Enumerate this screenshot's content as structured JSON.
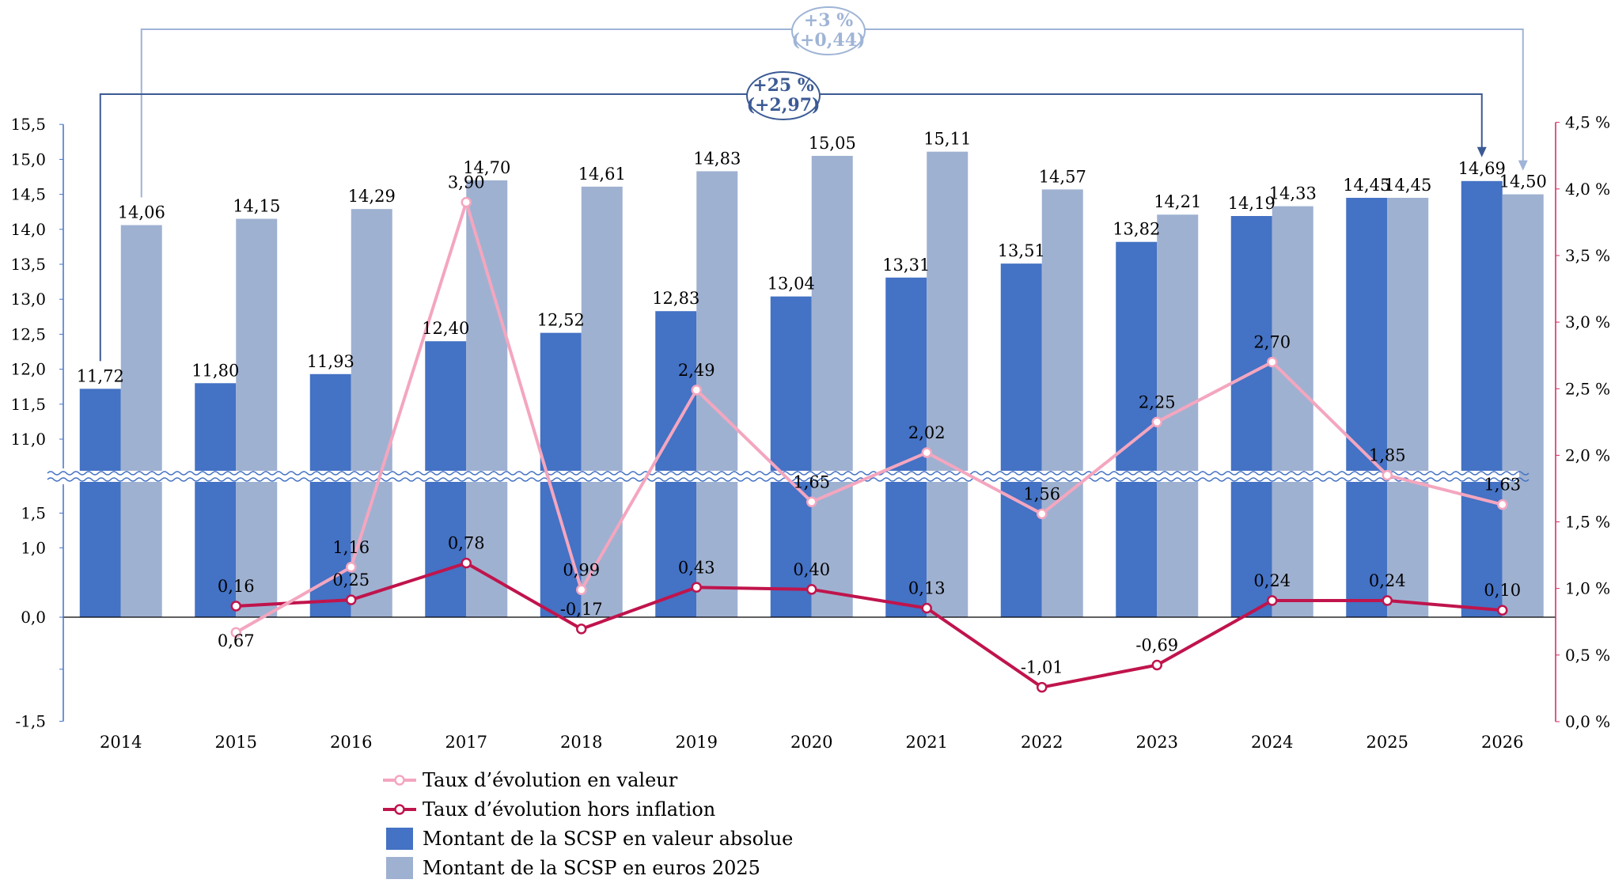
{
  "chart_data": {
    "type": "bar",
    "categories": [
      "2014",
      "2015",
      "2016",
      "2017",
      "2018",
      "2019",
      "2020",
      "2021",
      "2022",
      "2023",
      "2024",
      "2025",
      "2026"
    ],
    "series": [
      {
        "name": "Montant de la SCSP en valeur absolue",
        "kind": "bar",
        "axis": "left",
        "color": "#4472C4",
        "values": [
          11.72,
          11.8,
          11.93,
          12.4,
          12.52,
          12.83,
          13.04,
          13.31,
          13.51,
          13.82,
          14.19,
          14.45,
          14.69
        ],
        "labels": [
          "11,72",
          "11,80",
          "11,93",
          "12,40",
          "12,52",
          "12,83",
          "13,04",
          "13,31",
          "13,51",
          "13,82",
          "14,19",
          "14,45",
          "14,69"
        ]
      },
      {
        "name": "Montant de la SCSP en euros 2025",
        "kind": "bar",
        "axis": "left",
        "color": "#9FB1D1",
        "values": [
          14.06,
          14.15,
          14.29,
          14.7,
          14.61,
          14.83,
          15.05,
          15.11,
          14.57,
          14.21,
          14.33,
          14.45,
          14.5
        ],
        "labels": [
          "14,06",
          "14,15",
          "14,29",
          "14,70",
          "14,61",
          "14,83",
          "15,05",
          "15,11",
          "14,57",
          "14,21",
          "14,33",
          "14,45",
          "14,50"
        ]
      },
      {
        "name": "Taux d’évolution en valeur",
        "kind": "line",
        "axis": "right",
        "color": "#F4A6BF",
        "values": [
          null,
          0.67,
          1.16,
          3.9,
          0.99,
          2.49,
          1.65,
          2.02,
          1.56,
          2.25,
          2.7,
          1.85,
          1.63
        ],
        "labels": [
          null,
          "0,67",
          "1,16",
          "3,90",
          "0,99",
          "2,49",
          "1,65",
          "2,02",
          "1,56",
          "2,25",
          "2,70",
          "1,85",
          "1,63"
        ]
      },
      {
        "name": "Taux d’évolution hors inflation",
        "kind": "line",
        "axis": "left-low",
        "color": "#C0144C",
        "values": [
          null,
          0.16,
          0.25,
          0.78,
          -0.17,
          0.43,
          0.4,
          0.13,
          -1.01,
          -0.69,
          0.24,
          0.24,
          0.1
        ],
        "labels": [
          null,
          "0,16",
          "0,25",
          "0,78",
          "-0,17",
          "0,43",
          "0,40",
          "0,13",
          "-1,01",
          "-0,69",
          "0,24",
          "0,24",
          "0,10"
        ]
      }
    ],
    "left_axis_upper": {
      "ylim": [
        11.0,
        15.5
      ],
      "ticks": [
        "11,0",
        "11,5",
        "12,0",
        "12,5",
        "13,0",
        "13,5",
        "14,0",
        "14,5",
        "15,0",
        "15,5"
      ]
    },
    "left_axis_lower": {
      "ylim": [
        -1.5,
        1.5
      ],
      "ticks": [
        "-1,5",
        "",
        "0,0",
        "1,0",
        "1,5"
      ]
    },
    "right_axis": {
      "ylim": [
        0,
        4.5
      ],
      "ticks": [
        "0,0 %",
        "0,5 %",
        "1,0 %",
        "1,5 %",
        "2,0 %",
        "2,5 %",
        "3,0 %",
        "3,5 %",
        "4,0 %",
        "4,5 %"
      ]
    },
    "axis_break": true,
    "annotations": [
      {
        "from": "2014",
        "to": "2026",
        "series": "Montant de la SCSP en valeur absolue",
        "line1": "+25 %",
        "line2": "(+2,97)",
        "color": "#3B5A94"
      },
      {
        "from": "2014",
        "to": "2026",
        "series": "Montant de la SCSP en euros 2025",
        "line1": "+3 %",
        "line2": "(+0,44)",
        "color": "#9FB4D6"
      }
    ],
    "legend": {
      "placement": "bottom",
      "items": [
        {
          "label": "Taux d’évolution en valeur",
          "type": "line",
          "color": "#F4A6BF"
        },
        {
          "label": "Taux d’évolution hors inflation",
          "type": "line",
          "color": "#C0144C"
        },
        {
          "label": "Montant de la SCSP en valeur absolue",
          "type": "box",
          "color": "#4472C4"
        },
        {
          "label": "Montant de la SCSP en euros 2025",
          "type": "box",
          "color": "#9FB1D1"
        }
      ]
    }
  }
}
